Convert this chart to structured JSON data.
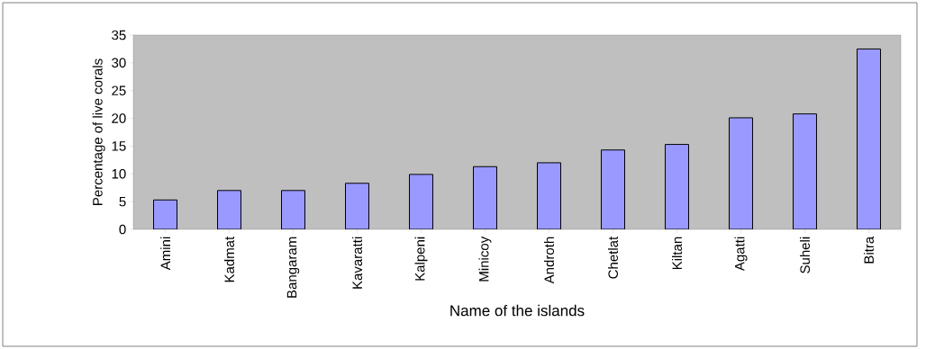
{
  "chart_data": {
    "type": "bar",
    "xlabel": "Name of the islands",
    "ylabel": "Percentage of live corals",
    "categories": [
      "Amini",
      "Kadmat",
      "Bangaram",
      "Kavaratti",
      "Kalpeni",
      "Minicoy",
      "Androth",
      "Chetlat",
      "Kiltan",
      "Agatti",
      "Suheli",
      "Bitra"
    ],
    "values": [
      5.3,
      7.0,
      7.0,
      8.3,
      9.9,
      11.3,
      12.0,
      14.3,
      15.3,
      20.1,
      20.8,
      32.5
    ],
    "color": "#9999ff",
    "ylim": [
      0,
      35
    ],
    "yticks": [
      0,
      5,
      10,
      15,
      20,
      25,
      30,
      35
    ]
  }
}
